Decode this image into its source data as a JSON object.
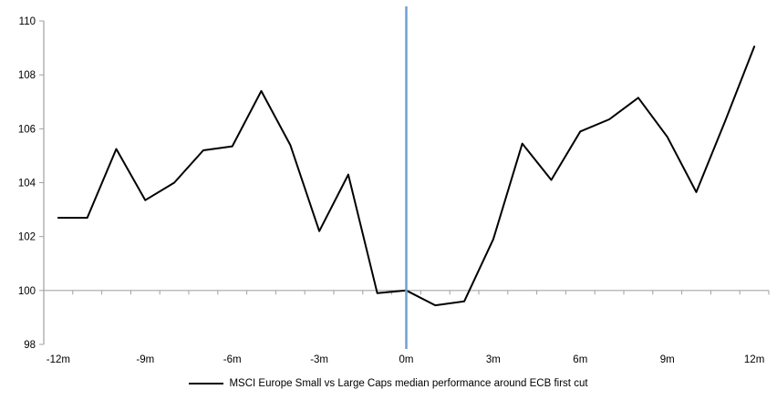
{
  "chart_data": {
    "type": "line",
    "title": "",
    "xlabel": "",
    "ylabel": "",
    "ylim": [
      98,
      110
    ],
    "y_ticks": [
      98,
      100,
      102,
      104,
      106,
      108,
      110
    ],
    "x": [
      -12,
      -11,
      -10,
      -9,
      -8,
      -7,
      -6,
      -5,
      -4,
      -3,
      -2,
      -1,
      0,
      1,
      2,
      3,
      4,
      5,
      6,
      7,
      8,
      9,
      10,
      11,
      12
    ],
    "x_axis_labels": [
      {
        "x": -12,
        "label": "-12m"
      },
      {
        "x": -9,
        "label": "-9m"
      },
      {
        "x": -6,
        "label": "-6m"
      },
      {
        "x": -3,
        "label": "-3m"
      },
      {
        "x": 0,
        "label": "0m"
      },
      {
        "x": 3,
        "label": "3m"
      },
      {
        "x": 6,
        "label": "6m"
      },
      {
        "x": 9,
        "label": "9m"
      },
      {
        "x": 12,
        "label": "12m"
      }
    ],
    "series": [
      {
        "name": "MSCI Europe Small vs Large Caps median performance around ECB first cut",
        "color": "#000000",
        "values": [
          102.7,
          102.7,
          105.25,
          103.35,
          104.0,
          105.2,
          105.35,
          107.4,
          105.4,
          102.2,
          104.3,
          99.9,
          100.0,
          99.45,
          99.6,
          101.9,
          105.45,
          104.1,
          105.9,
          106.35,
          107.15,
          105.7,
          103.65,
          106.3,
          109.05
        ]
      }
    ],
    "reference_lines": {
      "vertical": {
        "x": 0,
        "color": "#6FA0CD"
      },
      "horizontal": {
        "y": 100,
        "color": "#A6A6A6"
      }
    },
    "axis_color": "#A0A0A0",
    "text_color": "#000000",
    "legend_position": "bottom-center",
    "grid": "off"
  }
}
